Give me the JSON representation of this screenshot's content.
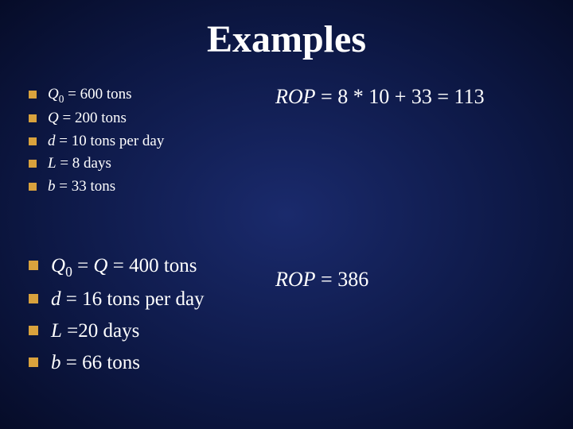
{
  "background": {
    "gradient_center": "#1a2a6c",
    "gradient_mid": "#0d1845",
    "gradient_edge": "#060c28"
  },
  "bullet_color": "#d9a23d",
  "text_color": "#ffffff",
  "title": "Examples",
  "title_fontsize": 48,
  "group1": {
    "fontsize": 19,
    "items": [
      {
        "var": "Q",
        "sub": "0",
        "rest": " = 600 tons"
      },
      {
        "var": "Q",
        "sub": "",
        "rest": " = 200 tons"
      },
      {
        "var": "d",
        "sub": "",
        "rest": " = 10 tons per day"
      },
      {
        "var": "L",
        "sub": "",
        "rest": " = 8 days"
      },
      {
        "var": "b",
        "sub": "",
        "rest": " = 33 tons"
      }
    ]
  },
  "group2": {
    "fontsize": 25,
    "items": [
      {
        "prefix_italic": "Q",
        "sub": "0",
        "mid": " = ",
        "var2": "Q",
        "rest": " = 400 tons"
      },
      {
        "var": "d",
        "sub": "",
        "rest": " = 16 tons per day"
      },
      {
        "var": "L",
        "sub": "",
        "rest": " =20 days"
      },
      {
        "var": "b",
        "sub": "",
        "rest": " = 66 tons"
      }
    ]
  },
  "rop1": {
    "label": "ROP",
    "eq": " = 8 * 10 + 33 = 113",
    "fontsize": 26
  },
  "rop2": {
    "label": "ROP",
    "eq": " = 386",
    "fontsize": 26
  }
}
